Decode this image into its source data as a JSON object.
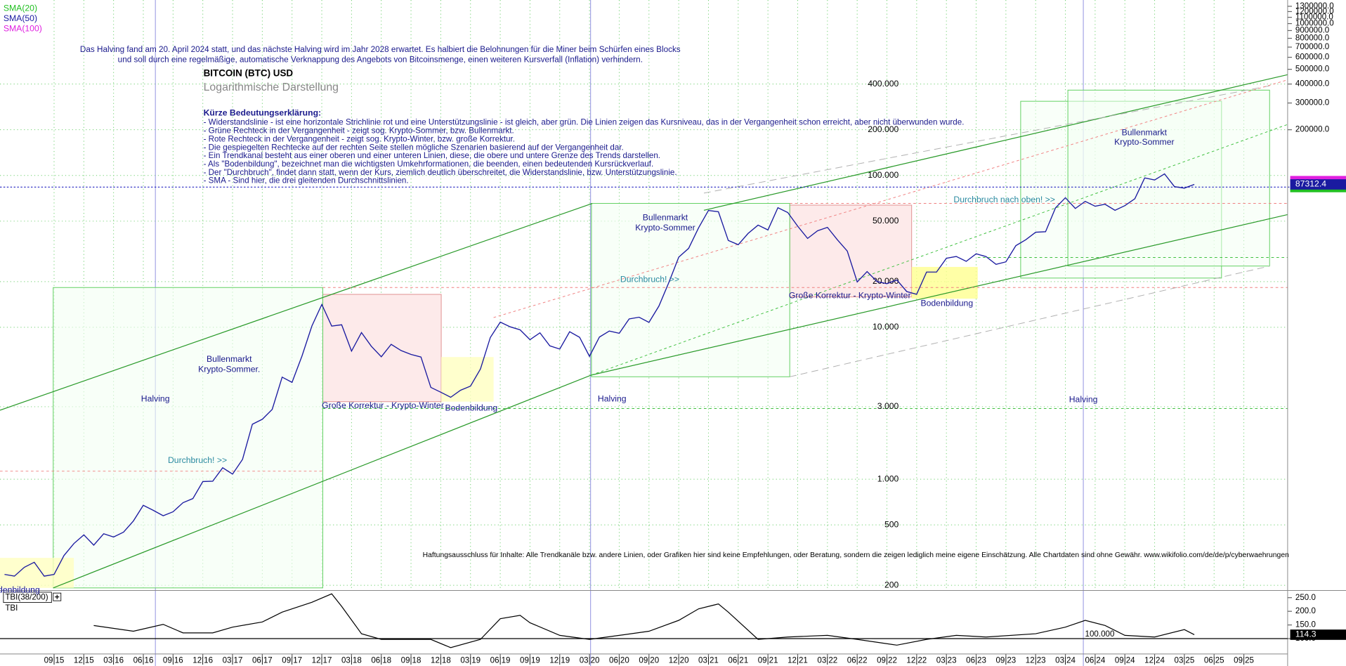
{
  "chart_data": {
    "type": "line",
    "title": "BITCOIN (BTC) USD",
    "subtitle": "Logarithmische Darstellung",
    "indicators": [
      {
        "name": "SMA(20)",
        "color": "#22c022"
      },
      {
        "name": "SMA(50)",
        "color": "#1a1aa0"
      },
      {
        "name": "SMA(100)",
        "color": "#e020e0"
      }
    ],
    "note": [
      "Das Halving fand am 20. April 2024 statt, und das nächste Halving wird im Jahr 2028 erwartet. Es halbiert die Belohnungen für die Miner beim Schürfen eines Blocks",
      "und soll durch eine regelmäßige, automatische Verknappung des Angebots von Bitcoinsmenge, einen weiteren Kursverfall (Inflation) verhindern."
    ],
    "explanation": {
      "heading": "Kürze Bedeutungserklärung:",
      "lines": [
        "- Widerstandslinie - ist eine horizontale Strichlinie rot und eine Unterstützungslinie - ist gleich, aber grün. Die Linien zeigen das Kursniveau, das in der Vergangenheit schon erreicht, aber nicht überwunden wurde.",
        "- Grüne Rechteck in der Vergangenheit - zeigt sog. Krypto-Sommer, bzw. Bullenmarkt.",
        "- Rote Rechteck in der Vergangenheit - zeigt sog. Krypto-Winter, bzw. große Korrektur.",
        "- Die gespiegelten Rechtecke auf der rechten Seite stellen mögliche Szenarien basierend auf der Vergangenheit dar.",
        "- Ein Trendkanal besteht aus einer oberen und einer unteren Linien, diese, die obere und untere Grenze des Trends darstellen.",
        "- Als \"Bodenbildung\", bezeichnet man die wichtigsten Umkehrformationen, die beenden, einen bedeutenden Kursrückverlauf.",
        "- Der \"Durchbruch\", findet dann statt, wenn der Kurs, ziemlich deutlich überschreitet, die Widerstandslinie, bzw. Unterstützungslinie.",
        "- SMA - Sind hier, die drei gleitenden Durchschnittslinien."
      ]
    },
    "annotations": [
      "Halving",
      "Halving",
      "Halving",
      "Bullenmarkt",
      "Krypto-Sommer.",
      "Bullenmarkt",
      "Krypto-Sommer",
      "Bullenmarkt",
      "Krypto-Sommer",
      "Durchbruch! >>",
      "Durchbruch! >>",
      "Durchbruch nach oben! >>",
      "Große Korrektur - Krypto-Winter",
      "Große Korrektur - Krypto-Winter",
      "Bodenbildung",
      "Bodenbildung",
      "denbildung"
    ],
    "disclaimer": "Haftungsausschluss für Inhalte: Alle Trendkanäle bzw. andere Linien, oder Grafiken hier sind keine Empfehlungen, oder Beratung, sondern die zeigen lediglich meine eigene Einschätzung. Alle Chartdaten sind ohne Gewähr. www.wikifolio.com/de/de/p/cyberwaehrungen",
    "log_scale": true,
    "grid": true,
    "x": [
      "2015-04",
      "2015-05",
      "2015-06",
      "2015-07",
      "2015-08",
      "2015-09",
      "2015-10",
      "2015-11",
      "2015-12",
      "2016-01",
      "2016-02",
      "2016-03",
      "2016-04",
      "2016-05",
      "2016-06",
      "2016-07",
      "2016-08",
      "2016-09",
      "2016-10",
      "2016-11",
      "2016-12",
      "2017-01",
      "2017-02",
      "2017-03",
      "2017-04",
      "2017-05",
      "2017-06",
      "2017-07",
      "2017-08",
      "2017-09",
      "2017-10",
      "2017-11",
      "2017-12",
      "2018-01",
      "2018-02",
      "2018-03",
      "2018-04",
      "2018-05",
      "2018-06",
      "2018-07",
      "2018-08",
      "2018-09",
      "2018-10",
      "2018-11",
      "2018-12",
      "2019-01",
      "2019-02",
      "2019-03",
      "2019-04",
      "2019-05",
      "2019-06",
      "2019-07",
      "2019-08",
      "2019-09",
      "2019-10",
      "2019-11",
      "2019-12",
      "2020-01",
      "2020-02",
      "2020-03",
      "2020-04",
      "2020-05",
      "2020-06",
      "2020-07",
      "2020-08",
      "2020-09",
      "2020-10",
      "2020-11",
      "2020-12",
      "2021-01",
      "2021-02",
      "2021-03",
      "2021-04",
      "2021-05",
      "2021-06",
      "2021-07",
      "2021-08",
      "2021-09",
      "2021-10",
      "2021-11",
      "2021-12",
      "2022-01",
      "2022-02",
      "2022-03",
      "2022-04",
      "2022-05",
      "2022-06",
      "2022-07",
      "2022-08",
      "2022-09",
      "2022-10",
      "2022-11",
      "2022-12",
      "2023-01",
      "2023-02",
      "2023-03",
      "2023-04",
      "2023-05",
      "2023-06",
      "2023-07",
      "2023-08",
      "2023-09",
      "2023-10",
      "2023-11",
      "2023-12",
      "2024-01",
      "2024-02",
      "2024-03",
      "2024-04",
      "2024-05",
      "2024-06",
      "2024-07",
      "2024-08",
      "2024-09",
      "2024-10",
      "2024-11",
      "2024-12",
      "2025-01",
      "2025-02",
      "2025-03",
      "2025-04"
    ],
    "series": [
      {
        "name": "BTC",
        "color": "#1a1aa0",
        "values": [
          236,
          230,
          263,
          284,
          230,
          236,
          314,
          377,
          430,
          368,
          437,
          416,
          448,
          531,
          673,
          624,
          575,
          610,
          700,
          745,
          964,
          970,
          1190,
          1080,
          1350,
          2300,
          2480,
          2880,
          4700,
          4340,
          6470,
          10200,
          14150,
          10200,
          10400,
          6970,
          9240,
          7500,
          6400,
          7730,
          7030,
          6630,
          6370,
          4020,
          3740,
          3460,
          3850,
          4100,
          5320,
          8570,
          10820,
          10080,
          9630,
          8290,
          9200,
          7550,
          7190,
          9350,
          8600,
          6440,
          8630,
          9450,
          9140,
          11350,
          11650,
          10780,
          13800,
          19700,
          29000,
          33100,
          45200,
          58800,
          57700,
          37300,
          35000,
          41500,
          47100,
          43800,
          61300,
          57000,
          46300,
          38500,
          43200,
          45500,
          37700,
          31800,
          19900,
          23300,
          20000,
          19400,
          20500,
          17200,
          16500,
          23100,
          23100,
          28500,
          29300,
          27200,
          30500,
          29200,
          26000,
          27000,
          34500,
          37700,
          42300,
          42600,
          61200,
          71300,
          60600,
          67500,
          62700,
          64600,
          59000,
          63300,
          70200,
          96400,
          93400,
          102400,
          84400,
          82500,
          87312.4
        ]
      }
    ],
    "ylim": [
      185,
      1430000
    ],
    "yticks": [
      {
        "value": 400000,
        "label": "400.000"
      },
      {
        "value": 200000,
        "label": "200.000"
      },
      {
        "value": 100000,
        "label": "100.000"
      },
      {
        "value": 50000,
        "label": "50.000"
      },
      {
        "value": 20000,
        "label": "20.000"
      },
      {
        "value": 10000,
        "label": "10.000"
      },
      {
        "value": 3000,
        "label": "3.000"
      },
      {
        "value": 1000,
        "label": "1.000"
      },
      500,
      200
    ],
    "y2lim": [
      185,
      1430000
    ],
    "y2ticks": [
      {
        "value": 1300000,
        "label": "1300000.0"
      },
      {
        "value": 1200000,
        "label": "1200000.0"
      },
      {
        "value": 1100000,
        "label": "1100000.0"
      },
      {
        "value": 1000000,
        "label": "1000000.0"
      },
      {
        "value": 900000,
        "label": "900000.0"
      },
      {
        "value": 800000,
        "label": "800000.0"
      },
      {
        "value": 700000,
        "label": "700000.0"
      },
      {
        "value": 600000,
        "label": "600000.0"
      },
      {
        "value": 500000,
        "label": "500000.0"
      },
      {
        "value": 400000,
        "label": "400000.0"
      },
      {
        "value": 300000,
        "label": "300000.0"
      },
      {
        "value": 200000,
        "label": "200000.0"
      }
    ],
    "xticks": [
      {
        "value": "2015-09",
        "label": "09|15"
      },
      {
        "value": "2015-12",
        "label": "12|15"
      },
      {
        "value": "2016-03",
        "label": "03|16"
      },
      {
        "value": "2016-06",
        "label": "06|16"
      },
      {
        "value": "2016-09",
        "label": "09|16"
      },
      {
        "value": "2016-12",
        "label": "12|16"
      },
      {
        "value": "2017-03",
        "label": "03|17"
      },
      {
        "value": "2017-06",
        "label": "06|17"
      },
      {
        "value": "2017-09",
        "label": "09|17"
      },
      {
        "value": "2017-12",
        "label": "12|17"
      },
      {
        "value": "2018-03",
        "label": "03|18"
      },
      {
        "value": "2018-06",
        "label": "06|18"
      },
      {
        "value": "2018-09",
        "label": "09|18"
      },
      {
        "value": "2018-12",
        "label": "12|18"
      },
      {
        "value": "2019-03",
        "label": "03|19"
      },
      {
        "value": "2019-06",
        "label": "06|19"
      },
      {
        "value": "2019-09",
        "label": "09|19"
      },
      {
        "value": "2019-12",
        "label": "12|19"
      },
      {
        "value": "2020-03",
        "label": "03|20"
      },
      {
        "value": "2020-06",
        "label": "06|20"
      },
      {
        "value": "2020-09",
        "label": "09|20"
      },
      {
        "value": "2020-12",
        "label": "12|20"
      },
      {
        "value": "2021-03",
        "label": "03|21"
      },
      {
        "value": "2021-06",
        "label": "06|21"
      },
      {
        "value": "2021-09",
        "label": "09|21"
      },
      {
        "value": "2021-12",
        "label": "12|21"
      },
      {
        "value": "2022-03",
        "label": "03|22"
      },
      {
        "value": "2022-06",
        "label": "06|22"
      },
      {
        "value": "2022-09",
        "label": "09|22"
      },
      {
        "value": "2022-12",
        "label": "12|22"
      },
      {
        "value": "2023-03",
        "label": "03|23"
      },
      {
        "value": "2023-06",
        "label": "06|23"
      },
      {
        "value": "2023-09",
        "label": "09|23"
      },
      {
        "value": "2023-12",
        "label": "12|23"
      },
      {
        "value": "2024-03",
        "label": "03|24"
      },
      {
        "value": "2024-06",
        "label": "06|24"
      },
      {
        "value": "2024-09",
        "label": "09|24"
      },
      {
        "value": "2024-12",
        "label": "12|24"
      },
      {
        "value": "2025-03",
        "label": "03|25"
      },
      {
        "value": "2025-06",
        "label": "06|25"
      },
      {
        "value": "2025-09",
        "label": "09|25"
      }
    ],
    "tbi": {
      "name": "TBI(38/200)",
      "label": "TBI",
      "color": "#000000",
      "x": [
        "2016-01",
        "2016-05",
        "2016-08",
        "2016-10",
        "2017-01",
        "2017-03",
        "2017-06",
        "2017-08",
        "2017-11",
        "2018-01",
        "2018-02",
        "2018-04",
        "2018-06",
        "2018-11",
        "2019-01",
        "2019-04",
        "2019-06",
        "2019-08",
        "2019-09",
        "2019-12",
        "2020-03",
        "2020-06",
        "2020-09",
        "2020-12",
        "2021-02",
        "2021-04",
        "2021-05",
        "2021-08",
        "2021-11",
        "2022-03",
        "2022-06",
        "2022-10",
        "2023-01",
        "2023-04",
        "2023-07",
        "2023-12",
        "2024-03",
        "2024-05",
        "2024-07",
        "2024-09",
        "2024-12",
        "2025-03",
        "2025-04"
      ],
      "values": [
        148,
        127,
        152,
        121,
        121,
        142,
        161,
        197,
        233,
        264,
        218,
        118,
        97,
        97,
        67,
        97,
        173,
        185,
        158,
        112,
        97,
        112,
        127,
        167,
        209,
        227,
        197,
        97,
        106,
        112,
        97,
        76,
        97,
        112,
        106,
        118,
        142,
        167,
        148,
        112,
        106,
        133,
        114.3
      ],
      "ylim": [
        50,
        270
      ],
      "yticks": [
        {
          "value": 250,
          "label": "250.0"
        },
        {
          "value": 200,
          "label": "200.0"
        },
        {
          "value": 150,
          "label": "150.0"
        },
        {
          "value": 100,
          "label": "100.0"
        }
      ],
      "reference": {
        "value": 100,
        "label": "100.000"
      }
    }
  }
}
